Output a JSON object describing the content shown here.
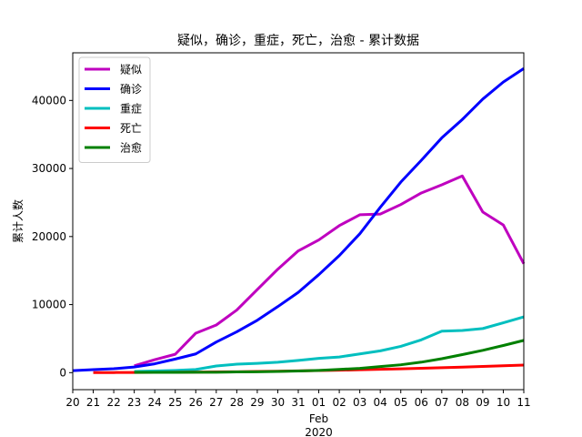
{
  "chart_data": {
    "type": "line",
    "title": "疑似，确诊，重症，死亡，治愈 - 累计数据",
    "xlabel": "",
    "ylabel": "累计人数",
    "x": [
      "20",
      "21",
      "22",
      "23",
      "24",
      "25",
      "26",
      "27",
      "28",
      "29",
      "30",
      "31",
      "01",
      "02",
      "03",
      "04",
      "05",
      "06",
      "07",
      "08",
      "09",
      "10",
      "11"
    ],
    "x_secondary": [
      "Feb",
      "2020"
    ],
    "xlim": [
      0,
      22
    ],
    "ylim": [
      -2500,
      47000
    ],
    "yticks": [
      0,
      10000,
      20000,
      30000,
      40000
    ],
    "yticklabels": [
      "0",
      "10000",
      "20000",
      "30000",
      "40000"
    ],
    "grid": false,
    "legend_position": "upper left",
    "series": [
      {
        "name": "疑似",
        "color": "#bf00bf",
        "values": [
          null,
          null,
          null,
          1000,
          1900,
          2700,
          5800,
          7000,
          9200,
          12200,
          15200,
          17900,
          19500,
          21600,
          23200,
          23300,
          24700,
          26400,
          27600,
          28900,
          23600,
          21700,
          16000
        ]
      },
      {
        "name": "确诊",
        "color": "#0000ff",
        "values": [
          300,
          450,
          570,
          830,
          1300,
          2000,
          2750,
          4500,
          6000,
          7700,
          9700,
          11800,
          14400,
          17200,
          20400,
          24300,
          28000,
          31200,
          34500,
          37200,
          40200,
          42700,
          44700
        ]
      },
      {
        "name": "重症",
        "color": "#00bfbf",
        "values": [
          null,
          null,
          null,
          180,
          240,
          320,
          460,
          980,
          1240,
          1370,
          1530,
          1800,
          2100,
          2300,
          2750,
          3200,
          3860,
          4820,
          6100,
          6190,
          6480,
          7330,
          8200
        ]
      },
      {
        "name": "死亡",
        "color": "#ff0000",
        "values": [
          null,
          6,
          17,
          25,
          41,
          56,
          80,
          106,
          132,
          170,
          213,
          259,
          304,
          361,
          425,
          490,
          563,
          636,
          722,
          811,
          908,
          1016,
          1110
        ]
      },
      {
        "name": "治愈",
        "color": "#008000",
        "values": [
          null,
          null,
          null,
          34,
          38,
          49,
          51,
          60,
          103,
          124,
          171,
          243,
          328,
          475,
          632,
          892,
          1153,
          1540,
          2050,
          2650,
          3280,
          3990,
          4740
        ]
      }
    ]
  }
}
